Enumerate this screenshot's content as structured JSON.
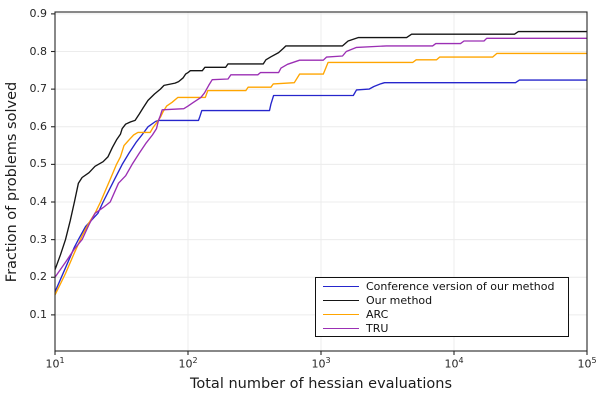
{
  "figure": {
    "xlabel": "Total number of hessian evaluations",
    "ylabel": "Fraction of problems solved"
  },
  "chart_data": {
    "type": "line",
    "title": "",
    "xlabel": "Total number of hessian evaluations",
    "ylabel": "Fraction of problems solved",
    "xscale": "log10",
    "xlim": [
      10,
      100000
    ],
    "ylim": [
      0.0,
      0.905
    ],
    "grid": true,
    "legend_position": "inside-bottom-right",
    "x_ticks": [
      {
        "base": "10",
        "exp": "1",
        "value": 10
      },
      {
        "base": "10",
        "exp": "2",
        "value": 100
      },
      {
        "base": "10",
        "exp": "3",
        "value": 1000
      },
      {
        "base": "10",
        "exp": "4",
        "value": 10000
      },
      {
        "base": "10",
        "exp": "5",
        "value": 100000
      }
    ],
    "y_ticks": [
      "0.1",
      "0.2",
      "0.3",
      "0.4",
      "0.5",
      "0.6",
      "0.7",
      "0.8",
      "0.9"
    ],
    "frame_color": "#262626",
    "grid_color": "#ececec",
    "series": [
      {
        "name": "Conference version of our method",
        "color": "#2626cc",
        "points": [
          [
            10,
            0.161
          ],
          [
            12,
            0.225
          ],
          [
            14,
            0.28
          ],
          [
            15,
            0.3
          ],
          [
            17,
            0.335
          ],
          [
            21,
            0.37
          ],
          [
            23,
            0.4
          ],
          [
            28,
            0.46
          ],
          [
            32,
            0.5
          ],
          [
            36,
            0.53
          ],
          [
            41,
            0.56
          ],
          [
            45,
            0.578
          ],
          [
            50,
            0.6
          ],
          [
            57,
            0.614
          ],
          [
            60,
            0.617
          ],
          [
            120,
            0.617
          ],
          [
            123,
            0.628
          ],
          [
            127,
            0.643
          ],
          [
            410,
            0.643
          ],
          [
            420,
            0.66
          ],
          [
            440,
            0.683
          ],
          [
            1750,
            0.683
          ],
          [
            1850,
            0.698
          ],
          [
            2300,
            0.7
          ],
          [
            2500,
            0.707
          ],
          [
            2800,
            0.714
          ],
          [
            3000,
            0.717
          ],
          [
            29000,
            0.717
          ],
          [
            31000,
            0.724
          ],
          [
            100000,
            0.724
          ]
        ]
      },
      {
        "name": "Our method",
        "color": "#151515",
        "points": [
          [
            10,
            0.22
          ],
          [
            11,
            0.26
          ],
          [
            12,
            0.3
          ],
          [
            13,
            0.35
          ],
          [
            14,
            0.4
          ],
          [
            15,
            0.45
          ],
          [
            16,
            0.465
          ],
          [
            18,
            0.478
          ],
          [
            20,
            0.495
          ],
          [
            23,
            0.507
          ],
          [
            25,
            0.52
          ],
          [
            27,
            0.545
          ],
          [
            29,
            0.565
          ],
          [
            31,
            0.58
          ],
          [
            32,
            0.595
          ],
          [
            34,
            0.607
          ],
          [
            37,
            0.613
          ],
          [
            40,
            0.617
          ],
          [
            43,
            0.634
          ],
          [
            46,
            0.65
          ],
          [
            50,
            0.67
          ],
          [
            56,
            0.687
          ],
          [
            62,
            0.7
          ],
          [
            66,
            0.71
          ],
          [
            80,
            0.716
          ],
          [
            85,
            0.72
          ],
          [
            92,
            0.73
          ],
          [
            96,
            0.74
          ],
          [
            100,
            0.744
          ],
          [
            104,
            0.749
          ],
          [
            128,
            0.749
          ],
          [
            134,
            0.758
          ],
          [
            192,
            0.758
          ],
          [
            200,
            0.767
          ],
          [
            368,
            0.767
          ],
          [
            385,
            0.778
          ],
          [
            420,
            0.786
          ],
          [
            480,
            0.797
          ],
          [
            520,
            0.808
          ],
          [
            545,
            0.815
          ],
          [
            1450,
            0.815
          ],
          [
            1600,
            0.828
          ],
          [
            1900,
            0.837
          ],
          [
            4400,
            0.837
          ],
          [
            4800,
            0.846
          ],
          [
            28500,
            0.846
          ],
          [
            30500,
            0.853
          ],
          [
            100000,
            0.853
          ]
        ]
      },
      {
        "name": "ARC",
        "color": "#ffa500",
        "points": [
          [
            10,
            0.153
          ],
          [
            12,
            0.21
          ],
          [
            14,
            0.265
          ],
          [
            16,
            0.31
          ],
          [
            18,
            0.345
          ],
          [
            20,
            0.37
          ],
          [
            22,
            0.4
          ],
          [
            26,
            0.46
          ],
          [
            29,
            0.5
          ],
          [
            31,
            0.52
          ],
          [
            33,
            0.55
          ],
          [
            36,
            0.565
          ],
          [
            39,
            0.578
          ],
          [
            42,
            0.585
          ],
          [
            52,
            0.585
          ],
          [
            55,
            0.6
          ],
          [
            58,
            0.61
          ],
          [
            62,
            0.625
          ],
          [
            65,
            0.64
          ],
          [
            69,
            0.655
          ],
          [
            76,
            0.665
          ],
          [
            84,
            0.678
          ],
          [
            135,
            0.678
          ],
          [
            141,
            0.696
          ],
          [
            272,
            0.696
          ],
          [
            283,
            0.705
          ],
          [
            420,
            0.705
          ],
          [
            438,
            0.714
          ],
          [
            630,
            0.717
          ],
          [
            690,
            0.74
          ],
          [
            1040,
            0.74
          ],
          [
            1130,
            0.771
          ],
          [
            4900,
            0.771
          ],
          [
            5200,
            0.778
          ],
          [
            7400,
            0.778
          ],
          [
            7800,
            0.785
          ],
          [
            19500,
            0.785
          ],
          [
            21000,
            0.795
          ],
          [
            100000,
            0.795
          ]
        ]
      },
      {
        "name": "TRU",
        "color": "#9b2fb4",
        "points": [
          [
            10,
            0.2
          ],
          [
            12,
            0.24
          ],
          [
            14,
            0.275
          ],
          [
            16,
            0.3
          ],
          [
            18,
            0.34
          ],
          [
            20,
            0.37
          ],
          [
            23,
            0.385
          ],
          [
            26,
            0.4
          ],
          [
            30,
            0.45
          ],
          [
            34,
            0.47
          ],
          [
            38,
            0.5
          ],
          [
            43,
            0.53
          ],
          [
            48,
            0.555
          ],
          [
            54,
            0.578
          ],
          [
            58,
            0.595
          ],
          [
            60,
            0.617
          ],
          [
            62,
            0.63
          ],
          [
            64,
            0.645
          ],
          [
            93,
            0.648
          ],
          [
            100,
            0.655
          ],
          [
            110,
            0.665
          ],
          [
            125,
            0.678
          ],
          [
            133,
            0.69
          ],
          [
            143,
            0.71
          ],
          [
            152,
            0.725
          ],
          [
            200,
            0.727
          ],
          [
            210,
            0.738
          ],
          [
            335,
            0.738
          ],
          [
            350,
            0.744
          ],
          [
            480,
            0.744
          ],
          [
            500,
            0.756
          ],
          [
            560,
            0.766
          ],
          [
            690,
            0.777
          ],
          [
            1040,
            0.777
          ],
          [
            1100,
            0.785
          ],
          [
            1450,
            0.788
          ],
          [
            1550,
            0.8
          ],
          [
            1850,
            0.811
          ],
          [
            3100,
            0.815
          ],
          [
            6900,
            0.815
          ],
          [
            7300,
            0.821
          ],
          [
            11200,
            0.821
          ],
          [
            11900,
            0.828
          ],
          [
            16800,
            0.828
          ],
          [
            17600,
            0.835
          ],
          [
            100000,
            0.835
          ]
        ]
      }
    ]
  }
}
